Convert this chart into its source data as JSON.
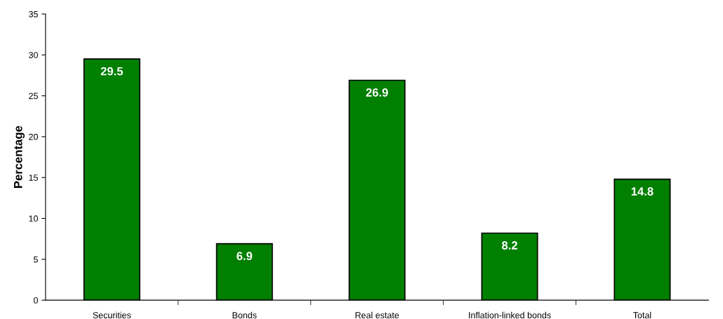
{
  "chart_data": {
    "type": "bar",
    "ylabel": "Percentage",
    "categories": [
      "Securities",
      "Bonds",
      "Real estate",
      "Inflation-linked bonds",
      "Total"
    ],
    "values": [
      29.5,
      6.9,
      26.9,
      8.2,
      14.8
    ],
    "color": "#007f00",
    "ylim": [
      0,
      35
    ],
    "yticks": [
      0,
      5,
      10,
      15,
      20,
      25,
      30,
      35
    ],
    "data_labels": true,
    "grid": false,
    "legend": false
  }
}
